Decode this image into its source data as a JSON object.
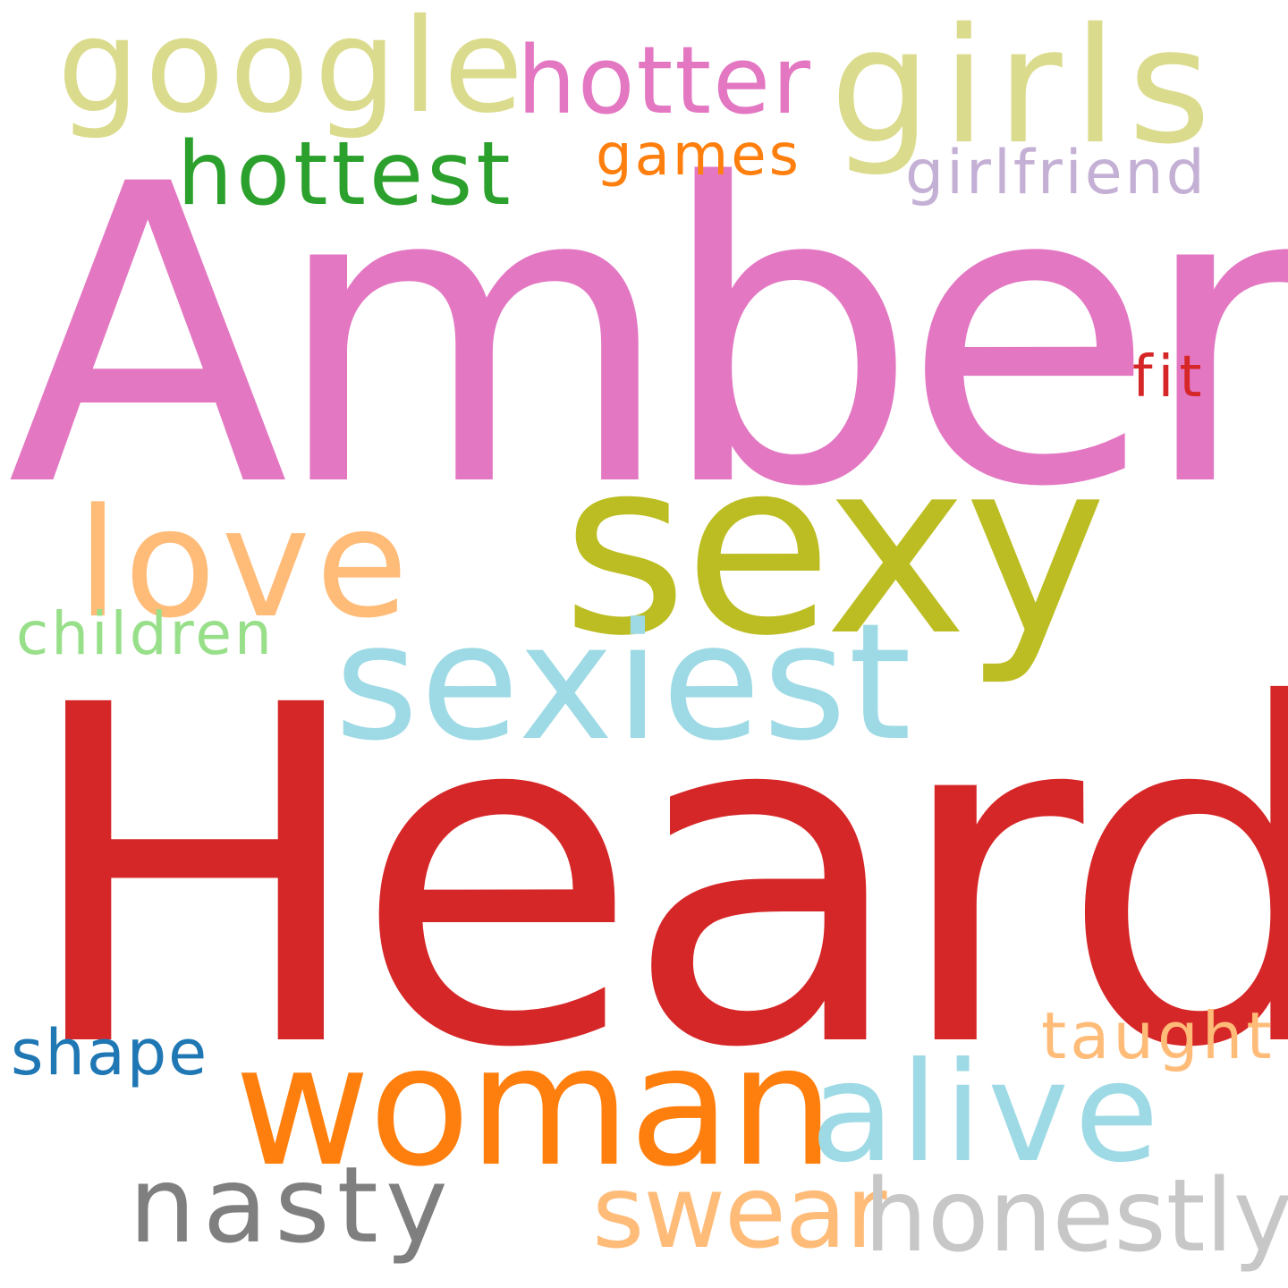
{
  "word_cloud": {
    "background": "#ffffff",
    "words": [
      {
        "text": "Amber",
        "color": "#e377c2"
      },
      {
        "text": "Heard",
        "color": "#d62728"
      },
      {
        "text": "sexy",
        "color": "#bcbd22"
      },
      {
        "text": "sexiest",
        "color": "#9edae5"
      },
      {
        "text": "love",
        "color": "#ffbb78"
      },
      {
        "text": "google",
        "color": "#dbdb8d"
      },
      {
        "text": "girls",
        "color": "#dbdb8d"
      },
      {
        "text": "hotter",
        "color": "#e377c2"
      },
      {
        "text": "hottest",
        "color": "#2ca02c"
      },
      {
        "text": "games",
        "color": "#ff7f0e"
      },
      {
        "text": "girlfriend",
        "color": "#c5b0d5"
      },
      {
        "text": "fit",
        "color": "#d62728"
      },
      {
        "text": "children",
        "color": "#98df8a"
      },
      {
        "text": "woman",
        "color": "#ff7f0e"
      },
      {
        "text": "alive",
        "color": "#9edae5"
      },
      {
        "text": "taught",
        "color": "#ffbb78"
      },
      {
        "text": "shape",
        "color": "#1f77b4"
      },
      {
        "text": "nasty",
        "color": "#7f7f7f"
      },
      {
        "text": "swear",
        "color": "#ffbb78"
      },
      {
        "text": "honestly",
        "color": "#c7c7c7"
      }
    ]
  }
}
